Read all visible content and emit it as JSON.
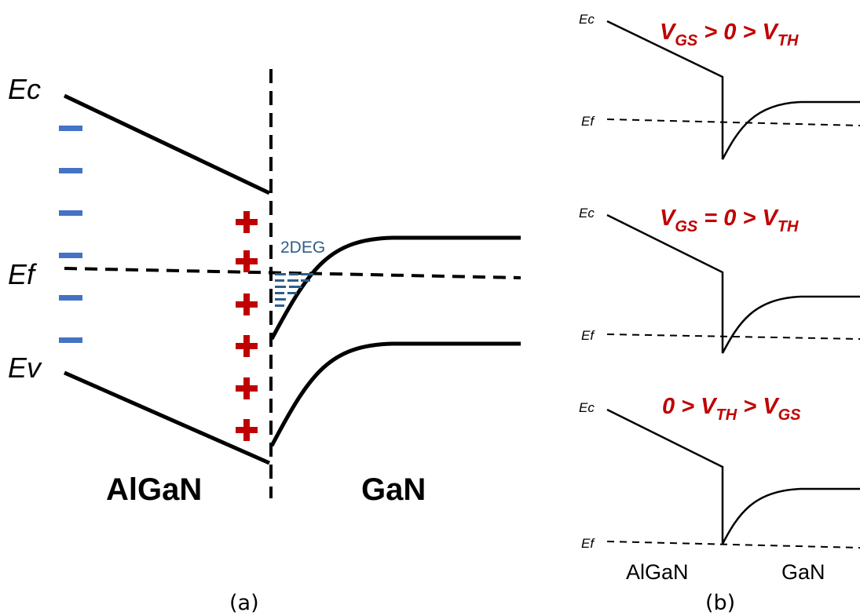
{
  "panel_a": {
    "labels": {
      "ec": "Ec",
      "ef": "Ef",
      "ev": "Ev"
    },
    "annotation_2deg": "2DEG",
    "materials": {
      "left": "AlGaN",
      "right": "GaN"
    },
    "caption": "(a)",
    "charges": {
      "negative_count": 6,
      "positive_count": 6,
      "negative_color": "#4472c4",
      "positive_color": "#c00000",
      "electron_color": "#2e5d8a"
    }
  },
  "panel_b": {
    "diagrams": [
      {
        "ec": "Ec",
        "ef": "Ef",
        "condition": [
          "V",
          "GS",
          " > 0 > V",
          "TH",
          ""
        ]
      },
      {
        "ec": "Ec",
        "ef": "Ef",
        "condition": [
          "V",
          "GS",
          " = 0 > V",
          "TH",
          ""
        ]
      },
      {
        "ec": "Ec",
        "ef": "Ef",
        "condition": [
          "0 > V",
          "TH",
          " > V",
          "GS",
          ""
        ]
      }
    ],
    "materials": {
      "left": "AlGaN",
      "right": "GaN"
    },
    "caption": "(b)",
    "condition_color": "#c00000"
  }
}
